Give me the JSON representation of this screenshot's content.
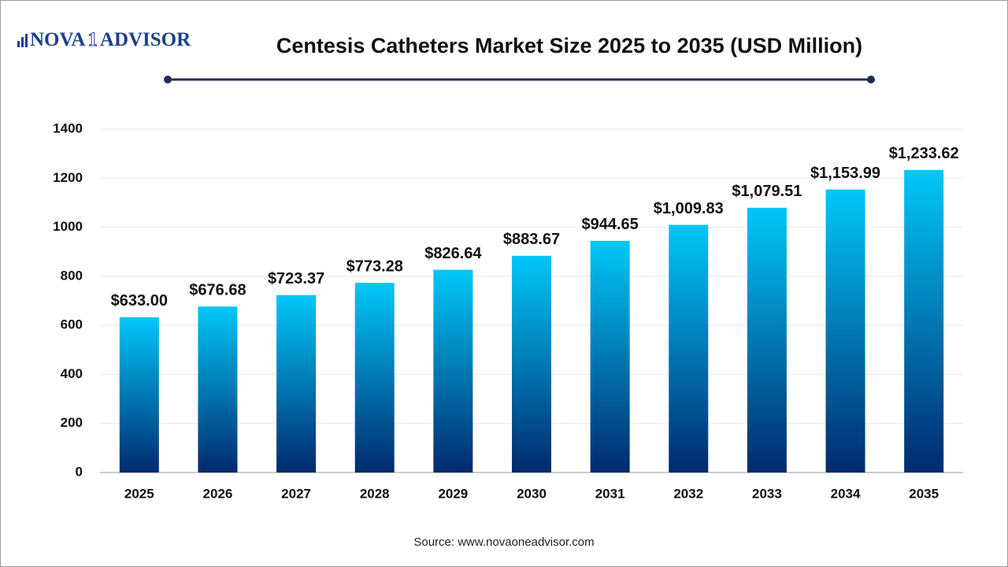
{
  "chart_data": {
    "type": "bar",
    "title": "Centesis Catheters Market Size 2025 to 2035 (USD Million)",
    "logo": [
      "NOVA",
      "1",
      "ADVISOR"
    ],
    "source": "Source: www.novaoneadvisor.com",
    "categories": [
      "2025",
      "2026",
      "2027",
      "2028",
      "2029",
      "2030",
      "2031",
      "2032",
      "2033",
      "2034",
      "2035"
    ],
    "values": [
      633.0,
      676.68,
      723.37,
      773.28,
      826.64,
      883.67,
      944.65,
      1009.83,
      1079.51,
      1153.99,
      1233.62
    ],
    "value_labels": [
      "$633.00",
      "$676.68",
      "$723.37",
      "$773.28",
      "$826.64",
      "$883.67",
      "$944.65",
      "$1,009.83",
      "$1,079.51",
      "$1,153.99",
      "$1,233.62"
    ],
    "colors": [
      "#00c8f8",
      "#002a6e"
    ],
    "ylim": [
      0,
      1400
    ],
    "yticks": [
      0,
      200,
      400,
      600,
      800,
      1000,
      1200,
      1400
    ],
    "grid": true
  }
}
